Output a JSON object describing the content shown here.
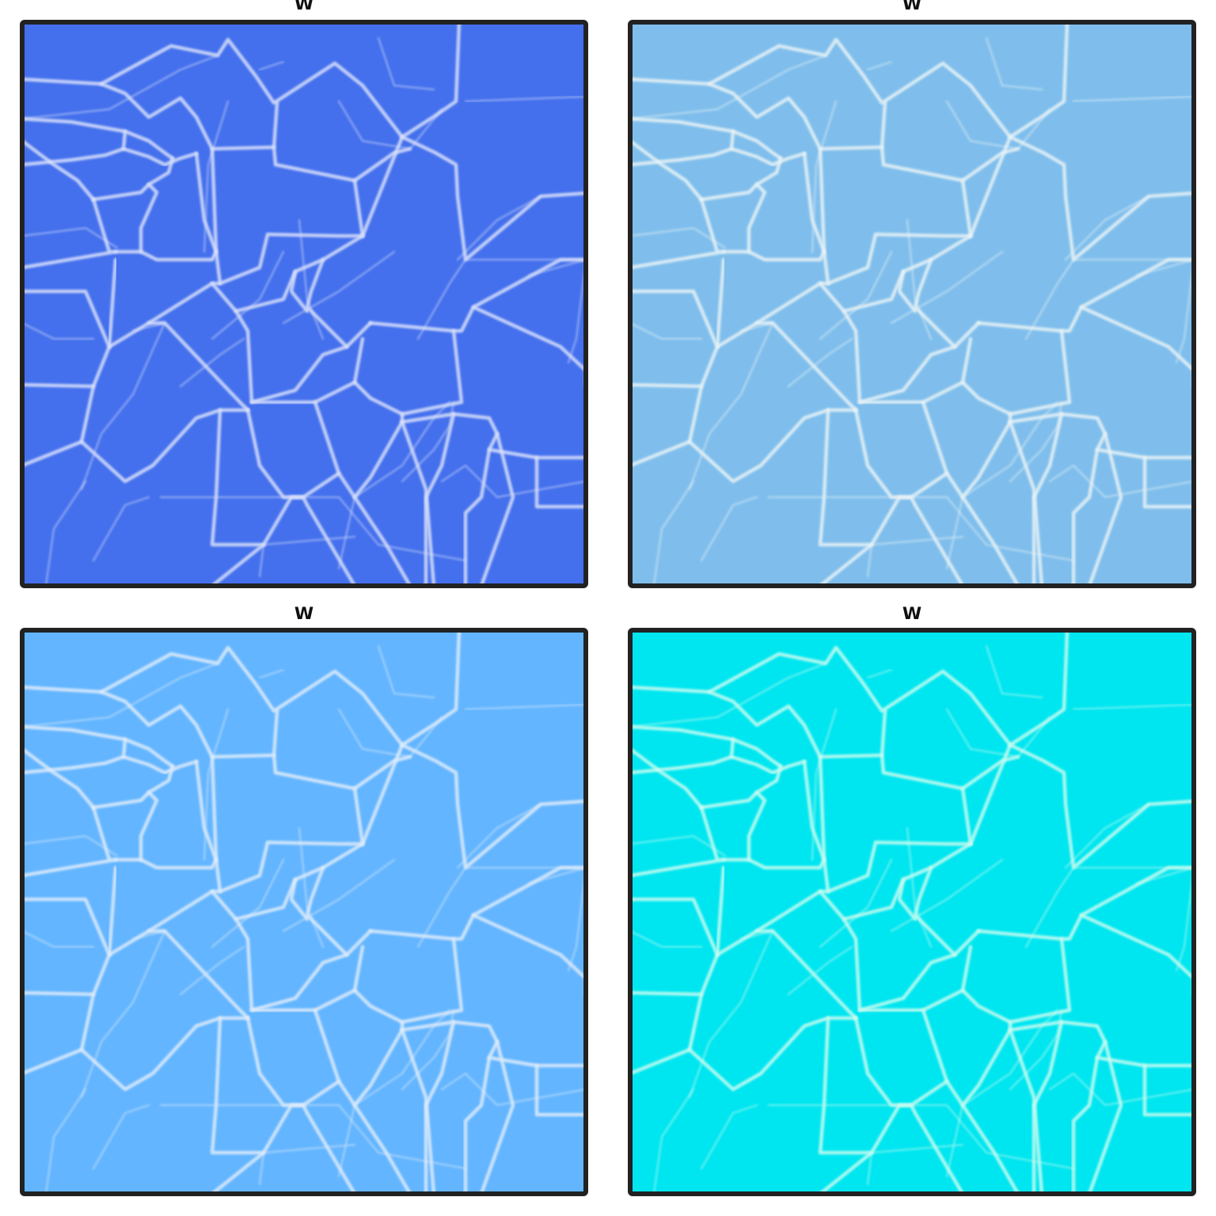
{
  "panels": [
    {
      "title": "W",
      "fill": "#4470ED",
      "edge": "#D7DFFA"
    },
    {
      "title": "W",
      "fill": "#7FBEEC",
      "edge": "#E6F2F6"
    },
    {
      "title": "W",
      "fill": "#63B5FF",
      "edge": "#DDEBFA"
    },
    {
      "title": "W",
      "fill": "#00E6F0",
      "edge": "#C7FBF0"
    }
  ],
  "frame_color": "#222222"
}
